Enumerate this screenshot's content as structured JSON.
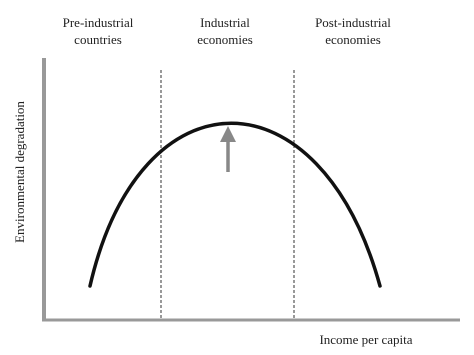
{
  "regions": [
    {
      "lines": [
        "Pre-industrial",
        "countries"
      ]
    },
    {
      "lines": [
        "Industrial",
        "economies"
      ]
    },
    {
      "lines": [
        "Post-industrial",
        "economies"
      ]
    }
  ],
  "x_axis_label": "Income per capita",
  "y_axis_label": "Environmental degradation"
}
